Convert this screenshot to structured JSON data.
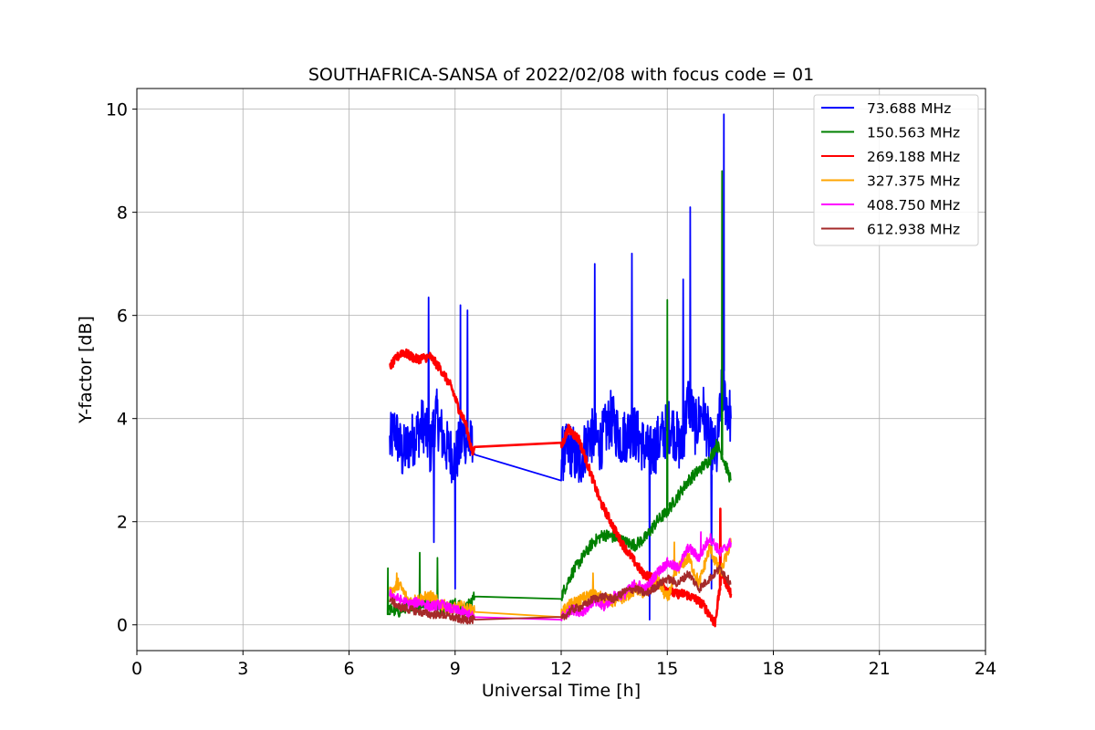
{
  "chart_data": {
    "type": "line",
    "title": "SOUTHAFRICA-SANSA of 2022/02/08 with focus code = 01",
    "xlabel": "Universal Time [h]",
    "ylabel": "Y-factor [dB]",
    "xlim": [
      0,
      24
    ],
    "ylim": [
      -0.5,
      10.4
    ],
    "xticks": [
      0,
      3,
      6,
      9,
      12,
      15,
      18,
      21,
      24
    ],
    "yticks": [
      0,
      2,
      4,
      6,
      8,
      10
    ],
    "grid": true,
    "legend_position": "top-right",
    "series": [
      {
        "name": "73.688 MHz",
        "color": "#0000ff",
        "x": [
          7.15,
          7.3,
          7.5,
          7.8,
          8.1,
          8.3,
          8.45,
          8.7,
          9.0,
          9.25,
          9.5,
          9.55,
          12.0,
          12.3,
          12.5,
          12.8,
          13.1,
          13.4,
          13.7,
          14.0,
          14.3,
          14.5,
          14.8,
          15.1,
          15.4,
          15.6,
          15.8,
          16.0,
          16.2,
          16.4,
          16.55,
          16.8
        ],
        "y": [
          3.5,
          3.8,
          3.3,
          3.6,
          3.9,
          3.4,
          4.1,
          3.5,
          3.2,
          3.7,
          3.4,
          3.3,
          3.3,
          3.4,
          3.1,
          3.7,
          3.5,
          4.0,
          3.6,
          3.8,
          3.5,
          3.3,
          3.6,
          3.9,
          3.4,
          4.4,
          3.8,
          4.2,
          3.5,
          3.3,
          4.6,
          4.0
        ],
        "spikes": [
          [
            8.25,
            6.35
          ],
          [
            9.15,
            6.2
          ],
          [
            9.35,
            6.1
          ],
          [
            8.4,
            1.6
          ],
          [
            9.0,
            0.7
          ],
          [
            12.95,
            7.0
          ],
          [
            14.0,
            7.2
          ],
          [
            14.5,
            0.1
          ],
          [
            15.45,
            6.7
          ],
          [
            15.65,
            8.1
          ],
          [
            16.25,
            0.7
          ],
          [
            16.6,
            9.9
          ]
        ]
      },
      {
        "name": "150.563 MHz",
        "color": "#008000",
        "x": [
          7.15,
          7.4,
          7.7,
          8.0,
          8.3,
          8.6,
          9.0,
          9.3,
          9.55,
          12.0,
          12.3,
          12.6,
          12.9,
          13.2,
          13.5,
          13.8,
          14.1,
          14.4,
          14.7,
          15.0,
          15.3,
          15.6,
          15.9,
          16.2,
          16.4,
          16.55,
          16.8
        ],
        "y": [
          0.3,
          0.25,
          0.4,
          0.35,
          0.5,
          0.3,
          0.4,
          0.3,
          0.55,
          0.55,
          1.0,
          1.3,
          1.6,
          1.75,
          1.7,
          1.6,
          1.55,
          1.7,
          2.0,
          2.2,
          2.5,
          2.8,
          3.0,
          3.2,
          3.5,
          3.3,
          2.8
        ],
        "spikes": [
          [
            7.1,
            1.1
          ],
          [
            8.0,
            1.4
          ],
          [
            8.5,
            1.3
          ],
          [
            15.0,
            6.3
          ],
          [
            16.55,
            8.8
          ]
        ]
      },
      {
        "name": "269.188 MHz",
        "color": "#ff0000",
        "x": [
          7.15,
          7.5,
          7.9,
          8.3,
          8.6,
          8.9,
          9.1,
          9.3,
          9.5,
          9.55,
          12.0,
          12.2,
          12.5,
          12.8,
          13.1,
          13.4,
          13.7,
          14.0,
          14.3,
          14.6,
          14.9,
          15.2,
          15.5,
          15.8,
          16.0,
          16.2,
          16.35,
          16.55,
          16.8
        ],
        "y": [
          5.0,
          5.3,
          5.15,
          5.2,
          4.95,
          4.6,
          4.2,
          3.9,
          3.3,
          3.45,
          3.45,
          3.8,
          3.6,
          3.0,
          2.4,
          2.0,
          1.6,
          1.3,
          1.0,
          0.9,
          0.75,
          0.6,
          0.6,
          0.5,
          0.4,
          0.2,
          0.05,
          1.0,
          0.6
        ],
        "spikes": [
          [
            16.5,
            2.25
          ],
          [
            16.3,
            0.0
          ]
        ]
      },
      {
        "name": "327.375 MHz",
        "color": "#ffa500",
        "x": [
          7.15,
          7.4,
          7.7,
          8.0,
          8.3,
          8.6,
          8.9,
          9.2,
          9.55,
          12.0,
          12.3,
          12.6,
          12.9,
          13.2,
          13.5,
          13.8,
          14.1,
          14.4,
          14.7,
          15.0,
          15.3,
          15.6,
          15.9,
          16.2,
          16.5,
          16.8
        ],
        "y": [
          0.6,
          0.8,
          0.45,
          0.5,
          0.55,
          0.4,
          0.3,
          0.35,
          0.25,
          0.25,
          0.4,
          0.5,
          0.6,
          0.5,
          0.45,
          0.55,
          0.7,
          0.6,
          0.9,
          0.5,
          1.1,
          1.3,
          0.8,
          1.5,
          1.0,
          1.6
        ],
        "spikes": [
          [
            7.35,
            1.0
          ],
          [
            12.9,
            1.0
          ],
          [
            15.2,
            1.6
          ]
        ]
      },
      {
        "name": "408.750 MHz",
        "color": "#ff00ff",
        "x": [
          7.15,
          7.4,
          7.7,
          8.0,
          8.3,
          8.6,
          8.9,
          9.2,
          9.55,
          12.0,
          12.3,
          12.6,
          12.9,
          13.2,
          13.5,
          13.8,
          14.1,
          14.4,
          14.7,
          15.0,
          15.3,
          15.6,
          15.9,
          16.2,
          16.5,
          16.8
        ],
        "y": [
          0.6,
          0.5,
          0.4,
          0.45,
          0.35,
          0.4,
          0.3,
          0.25,
          0.15,
          0.15,
          0.3,
          0.25,
          0.45,
          0.35,
          0.55,
          0.6,
          0.8,
          0.7,
          1.0,
          1.2,
          1.1,
          1.5,
          1.3,
          1.7,
          1.4,
          1.6
        ],
        "spikes": [
          [
            15.95,
            1.8
          ]
        ]
      },
      {
        "name": "612.938 MHz",
        "color": "#a52a2a",
        "x": [
          7.15,
          7.4,
          7.7,
          8.0,
          8.3,
          8.6,
          8.9,
          9.2,
          9.55,
          12.0,
          12.3,
          12.6,
          12.9,
          13.2,
          13.5,
          13.8,
          14.1,
          14.4,
          14.7,
          15.0,
          15.3,
          15.6,
          15.9,
          16.2,
          16.5,
          16.8
        ],
        "y": [
          0.5,
          0.35,
          0.3,
          0.25,
          0.2,
          0.2,
          0.15,
          0.1,
          0.1,
          0.1,
          0.3,
          0.35,
          0.5,
          0.55,
          0.5,
          0.65,
          0.7,
          0.6,
          0.75,
          0.9,
          0.8,
          1.0,
          0.7,
          0.9,
          1.1,
          0.8
        ],
        "spikes": []
      }
    ]
  }
}
